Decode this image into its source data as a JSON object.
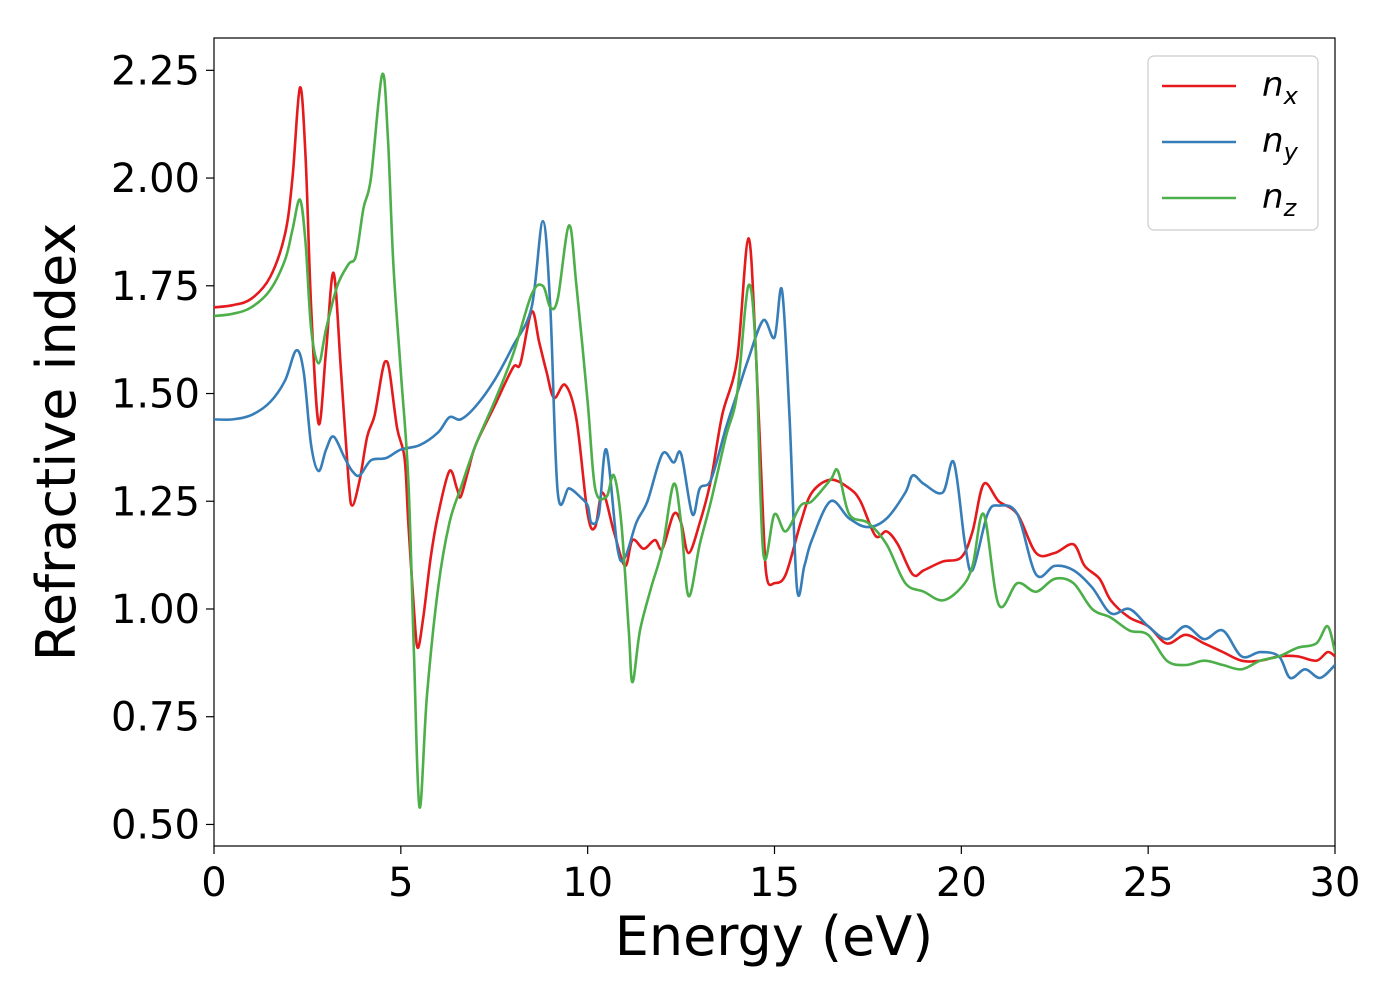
{
  "chart_data": {
    "type": "line",
    "xlabel": "Energy (eV)",
    "ylabel": "Refractive index",
    "xlim": [
      0,
      30
    ],
    "ylim": [
      0.45,
      2.325
    ],
    "xticks": [
      0,
      5,
      10,
      15,
      20,
      25,
      30
    ],
    "xtick_labels": [
      "0",
      "5",
      "10",
      "15",
      "20",
      "25",
      "30"
    ],
    "yticks": [
      0.5,
      0.75,
      1.0,
      1.25,
      1.5,
      1.75,
      2.0,
      2.25
    ],
    "ytick_labels": [
      "0.50",
      "0.75",
      "1.00",
      "1.25",
      "1.50",
      "1.75",
      "2.00",
      "2.25"
    ],
    "grid": false,
    "legend_position": "top-right",
    "series": [
      {
        "name": "n",
        "subscript": "x",
        "color": "#e41a1c",
        "points": [
          [
            0,
            1.7
          ],
          [
            0.5,
            1.705
          ],
          [
            1.0,
            1.72
          ],
          [
            1.5,
            1.77
          ],
          [
            1.9,
            1.87
          ],
          [
            2.1,
            2.0
          ],
          [
            2.3,
            2.21
          ],
          [
            2.45,
            2.05
          ],
          [
            2.6,
            1.7
          ],
          [
            2.8,
            1.43
          ],
          [
            3.0,
            1.6
          ],
          [
            3.2,
            1.78
          ],
          [
            3.4,
            1.55
          ],
          [
            3.6,
            1.3
          ],
          [
            3.7,
            1.24
          ],
          [
            3.9,
            1.3
          ],
          [
            4.1,
            1.4
          ],
          [
            4.3,
            1.45
          ],
          [
            4.5,
            1.55
          ],
          [
            4.6,
            1.575
          ],
          [
            4.7,
            1.55
          ],
          [
            4.9,
            1.42
          ],
          [
            5.1,
            1.35
          ],
          [
            5.2,
            1.2
          ],
          [
            5.35,
            1.0
          ],
          [
            5.45,
            0.91
          ],
          [
            5.6,
            0.98
          ],
          [
            5.8,
            1.12
          ],
          [
            6.0,
            1.22
          ],
          [
            6.3,
            1.32
          ],
          [
            6.5,
            1.28
          ],
          [
            6.6,
            1.26
          ],
          [
            6.8,
            1.32
          ],
          [
            7.0,
            1.38
          ],
          [
            7.5,
            1.47
          ],
          [
            8.0,
            1.56
          ],
          [
            8.2,
            1.57
          ],
          [
            8.5,
            1.69
          ],
          [
            8.7,
            1.62
          ],
          [
            8.9,
            1.55
          ],
          [
            9.1,
            1.49
          ],
          [
            9.4,
            1.52
          ],
          [
            9.7,
            1.44
          ],
          [
            10.0,
            1.22
          ],
          [
            10.2,
            1.19
          ],
          [
            10.4,
            1.27
          ],
          [
            10.7,
            1.18
          ],
          [
            11.0,
            1.1
          ],
          [
            11.2,
            1.16
          ],
          [
            11.5,
            1.14
          ],
          [
            11.8,
            1.16
          ],
          [
            12.0,
            1.14
          ],
          [
            12.3,
            1.22
          ],
          [
            12.5,
            1.2
          ],
          [
            12.7,
            1.13
          ],
          [
            13.0,
            1.2
          ],
          [
            13.3,
            1.3
          ],
          [
            13.6,
            1.45
          ],
          [
            14.0,
            1.58
          ],
          [
            14.3,
            1.86
          ],
          [
            14.5,
            1.6
          ],
          [
            14.7,
            1.2
          ],
          [
            14.8,
            1.07
          ],
          [
            15.0,
            1.06
          ],
          [
            15.3,
            1.08
          ],
          [
            15.7,
            1.2
          ],
          [
            16.0,
            1.27
          ],
          [
            16.5,
            1.3
          ],
          [
            17.0,
            1.28
          ],
          [
            17.3,
            1.25
          ],
          [
            17.7,
            1.17
          ],
          [
            18.0,
            1.18
          ],
          [
            18.3,
            1.15
          ],
          [
            18.7,
            1.08
          ],
          [
            19.0,
            1.09
          ],
          [
            19.5,
            1.11
          ],
          [
            20.0,
            1.12
          ],
          [
            20.3,
            1.18
          ],
          [
            20.6,
            1.29
          ],
          [
            21.0,
            1.25
          ],
          [
            21.5,
            1.22
          ],
          [
            22.0,
            1.13
          ],
          [
            22.5,
            1.13
          ],
          [
            23.0,
            1.15
          ],
          [
            23.3,
            1.1
          ],
          [
            23.7,
            1.07
          ],
          [
            24.0,
            1.02
          ],
          [
            24.5,
            0.98
          ],
          [
            25.0,
            0.96
          ],
          [
            25.5,
            0.92
          ],
          [
            26.0,
            0.94
          ],
          [
            26.5,
            0.92
          ],
          [
            27.0,
            0.9
          ],
          [
            27.5,
            0.88
          ],
          [
            28.0,
            0.88
          ],
          [
            28.5,
            0.89
          ],
          [
            29.0,
            0.89
          ],
          [
            29.5,
            0.88
          ],
          [
            29.8,
            0.9
          ],
          [
            30.0,
            0.89
          ]
        ]
      },
      {
        "name": "n",
        "subscript": "y",
        "color": "#377eb8",
        "points": [
          [
            0,
            1.44
          ],
          [
            0.5,
            1.44
          ],
          [
            1.0,
            1.45
          ],
          [
            1.5,
            1.48
          ],
          [
            1.9,
            1.53
          ],
          [
            2.2,
            1.6
          ],
          [
            2.4,
            1.55
          ],
          [
            2.6,
            1.38
          ],
          [
            2.8,
            1.32
          ],
          [
            3.0,
            1.37
          ],
          [
            3.2,
            1.4
          ],
          [
            3.5,
            1.35
          ],
          [
            3.7,
            1.32
          ],
          [
            3.9,
            1.31
          ],
          [
            4.2,
            1.345
          ],
          [
            4.6,
            1.35
          ],
          [
            5.0,
            1.37
          ],
          [
            5.5,
            1.38
          ],
          [
            6.0,
            1.41
          ],
          [
            6.3,
            1.445
          ],
          [
            6.6,
            1.44
          ],
          [
            7.0,
            1.47
          ],
          [
            7.5,
            1.53
          ],
          [
            8.0,
            1.61
          ],
          [
            8.5,
            1.7
          ],
          [
            8.8,
            1.9
          ],
          [
            9.0,
            1.7
          ],
          [
            9.2,
            1.27
          ],
          [
            9.5,
            1.28
          ],
          [
            9.8,
            1.26
          ],
          [
            10.0,
            1.24
          ],
          [
            10.1,
            1.2
          ],
          [
            10.3,
            1.22
          ],
          [
            10.5,
            1.37
          ],
          [
            10.8,
            1.14
          ],
          [
            11.0,
            1.12
          ],
          [
            11.3,
            1.2
          ],
          [
            11.6,
            1.25
          ],
          [
            12.0,
            1.36
          ],
          [
            12.3,
            1.34
          ],
          [
            12.5,
            1.36
          ],
          [
            12.8,
            1.22
          ],
          [
            13.0,
            1.28
          ],
          [
            13.3,
            1.3
          ],
          [
            13.7,
            1.42
          ],
          [
            14.0,
            1.5
          ],
          [
            14.3,
            1.58
          ],
          [
            14.7,
            1.67
          ],
          [
            15.0,
            1.63
          ],
          [
            15.2,
            1.74
          ],
          [
            15.4,
            1.45
          ],
          [
            15.6,
            1.05
          ],
          [
            15.8,
            1.1
          ],
          [
            16.0,
            1.16
          ],
          [
            16.5,
            1.25
          ],
          [
            17.0,
            1.21
          ],
          [
            17.5,
            1.19
          ],
          [
            18.0,
            1.21
          ],
          [
            18.5,
            1.27
          ],
          [
            18.7,
            1.31
          ],
          [
            19.0,
            1.29
          ],
          [
            19.5,
            1.27
          ],
          [
            19.8,
            1.34
          ],
          [
            20.1,
            1.15
          ],
          [
            20.3,
            1.09
          ],
          [
            20.7,
            1.22
          ],
          [
            21.0,
            1.24
          ],
          [
            21.5,
            1.22
          ],
          [
            22.0,
            1.08
          ],
          [
            22.5,
            1.1
          ],
          [
            23.0,
            1.09
          ],
          [
            23.5,
            1.05
          ],
          [
            24.0,
            0.99
          ],
          [
            24.5,
            1.0
          ],
          [
            25.0,
            0.96
          ],
          [
            25.5,
            0.93
          ],
          [
            26.0,
            0.96
          ],
          [
            26.5,
            0.93
          ],
          [
            27.0,
            0.95
          ],
          [
            27.5,
            0.89
          ],
          [
            28.0,
            0.9
          ],
          [
            28.5,
            0.89
          ],
          [
            28.8,
            0.84
          ],
          [
            29.2,
            0.86
          ],
          [
            29.6,
            0.84
          ],
          [
            30.0,
            0.87
          ]
        ]
      },
      {
        "name": "n",
        "subscript": "z",
        "color": "#4daf4a",
        "points": [
          [
            0,
            1.68
          ],
          [
            0.5,
            1.685
          ],
          [
            1.0,
            1.7
          ],
          [
            1.5,
            1.74
          ],
          [
            1.9,
            1.81
          ],
          [
            2.1,
            1.88
          ],
          [
            2.3,
            1.95
          ],
          [
            2.45,
            1.85
          ],
          [
            2.6,
            1.65
          ],
          [
            2.8,
            1.57
          ],
          [
            3.0,
            1.65
          ],
          [
            3.3,
            1.75
          ],
          [
            3.6,
            1.8
          ],
          [
            3.8,
            1.82
          ],
          [
            4.0,
            1.93
          ],
          [
            4.2,
            2.0
          ],
          [
            4.5,
            2.24
          ],
          [
            4.65,
            2.1
          ],
          [
            4.8,
            1.8
          ],
          [
            5.0,
            1.55
          ],
          [
            5.2,
            1.3
          ],
          [
            5.35,
            0.9
          ],
          [
            5.5,
            0.54
          ],
          [
            5.7,
            0.8
          ],
          [
            6.0,
            1.05
          ],
          [
            6.3,
            1.2
          ],
          [
            6.6,
            1.28
          ],
          [
            7.0,
            1.38
          ],
          [
            7.5,
            1.48
          ],
          [
            8.0,
            1.59
          ],
          [
            8.5,
            1.73
          ],
          [
            8.8,
            1.75
          ],
          [
            9.0,
            1.7
          ],
          [
            9.2,
            1.72
          ],
          [
            9.5,
            1.89
          ],
          [
            9.7,
            1.75
          ],
          [
            10.0,
            1.48
          ],
          [
            10.2,
            1.28
          ],
          [
            10.5,
            1.26
          ],
          [
            10.7,
            1.31
          ],
          [
            10.9,
            1.2
          ],
          [
            11.1,
            0.95
          ],
          [
            11.2,
            0.83
          ],
          [
            11.4,
            0.95
          ],
          [
            11.7,
            1.05
          ],
          [
            12.0,
            1.14
          ],
          [
            12.3,
            1.29
          ],
          [
            12.5,
            1.2
          ],
          [
            12.7,
            1.03
          ],
          [
            13.0,
            1.15
          ],
          [
            13.3,
            1.25
          ],
          [
            13.7,
            1.4
          ],
          [
            14.0,
            1.5
          ],
          [
            14.3,
            1.75
          ],
          [
            14.5,
            1.6
          ],
          [
            14.7,
            1.13
          ],
          [
            15.0,
            1.22
          ],
          [
            15.3,
            1.18
          ],
          [
            15.7,
            1.24
          ],
          [
            16.0,
            1.25
          ],
          [
            16.5,
            1.3
          ],
          [
            16.7,
            1.32
          ],
          [
            17.0,
            1.22
          ],
          [
            17.5,
            1.2
          ],
          [
            18.0,
            1.15
          ],
          [
            18.5,
            1.06
          ],
          [
            19.0,
            1.04
          ],
          [
            19.5,
            1.02
          ],
          [
            20.0,
            1.05
          ],
          [
            20.3,
            1.1
          ],
          [
            20.6,
            1.22
          ],
          [
            21.0,
            1.01
          ],
          [
            21.5,
            1.06
          ],
          [
            22.0,
            1.04
          ],
          [
            22.5,
            1.07
          ],
          [
            23.0,
            1.06
          ],
          [
            23.5,
            1.0
          ],
          [
            24.0,
            0.98
          ],
          [
            24.5,
            0.95
          ],
          [
            25.0,
            0.94
          ],
          [
            25.5,
            0.88
          ],
          [
            26.0,
            0.87
          ],
          [
            26.5,
            0.88
          ],
          [
            27.0,
            0.87
          ],
          [
            27.5,
            0.86
          ],
          [
            28.0,
            0.88
          ],
          [
            28.5,
            0.89
          ],
          [
            29.0,
            0.91
          ],
          [
            29.5,
            0.92
          ],
          [
            29.8,
            0.96
          ],
          [
            30.0,
            0.9
          ]
        ]
      }
    ]
  }
}
